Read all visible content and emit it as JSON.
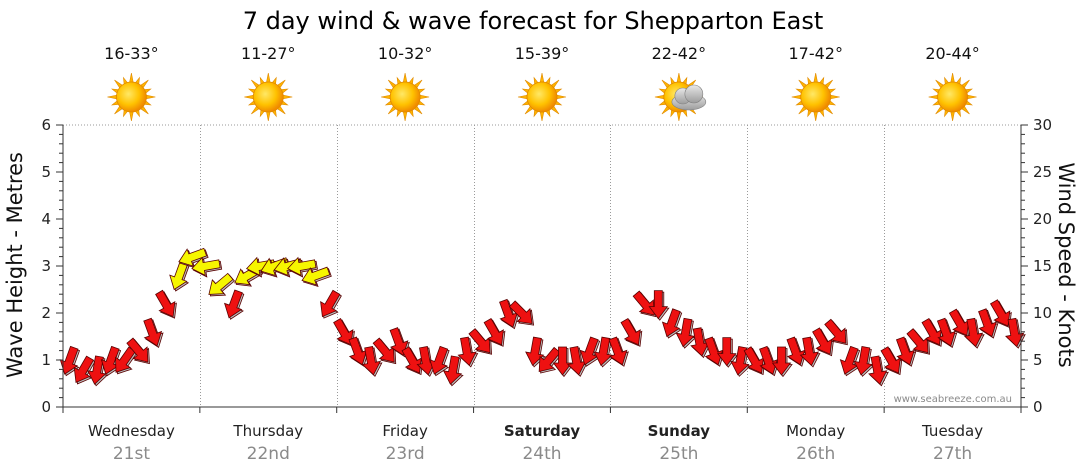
{
  "title": "7 day wind & wave forecast for Shepparton East",
  "chart_data": {
    "type": "line",
    "title": "7 day wind & wave forecast for Shepparton East",
    "y_left_label": "Wave Height - Metres",
    "y_right_label": "Wind Speed - Knots",
    "y_left_ticks": [
      "0",
      "1",
      "2",
      "3",
      "4",
      "5",
      "6"
    ],
    "y_right_ticks": [
      "0",
      "5",
      "10",
      "15",
      "20",
      "25",
      "30"
    ],
    "y_left_range": [
      0,
      6
    ],
    "y_right_range": [
      0,
      30
    ],
    "days": [
      {
        "day": "Wednesday",
        "date": "21st",
        "temp": "16-33°",
        "icon": "sun-icon",
        "bold": false
      },
      {
        "day": "Thursday",
        "date": "22nd",
        "temp": "11-27°",
        "icon": "sun-icon",
        "bold": false
      },
      {
        "day": "Friday",
        "date": "23rd",
        "temp": "10-32°",
        "icon": "sun-icon",
        "bold": false
      },
      {
        "day": "Saturday",
        "date": "24th",
        "temp": "15-39°",
        "icon": "sun-icon",
        "bold": true
      },
      {
        "day": "Sunday",
        "date": "25th",
        "temp": "22-42°",
        "icon": "sun-cloud-icon",
        "bold": true
      },
      {
        "day": "Monday",
        "date": "26th",
        "temp": "17-42°",
        "icon": "sun-icon",
        "bold": false
      },
      {
        "day": "Tuesday",
        "date": "27th",
        "temp": "20-44°",
        "icon": "sun-icon",
        "bold": false
      }
    ],
    "wind_series": {
      "name": "Wind",
      "units": "knots",
      "x_days": [
        0.0,
        0.1,
        0.2,
        0.3,
        0.4,
        0.5,
        0.6,
        0.7,
        0.8,
        0.9,
        1.0,
        1.1,
        1.2,
        1.3,
        1.4,
        1.5,
        1.6,
        1.7,
        1.8,
        1.9,
        2.0,
        2.1,
        2.2,
        2.3,
        2.4,
        2.5,
        2.6,
        2.7,
        2.8,
        2.9,
        3.0,
        3.1,
        3.2,
        3.3,
        3.4,
        3.5,
        3.6,
        3.7,
        3.8,
        3.9,
        4.0,
        4.1,
        4.2,
        4.3,
        4.4,
        4.5,
        4.6,
        4.7,
        4.8,
        4.9,
        5.0,
        5.1,
        5.2,
        5.3,
        5.4,
        5.5,
        5.6,
        5.7,
        5.8,
        5.9,
        6.0,
        6.1,
        6.2,
        6.3,
        6.4,
        6.5,
        6.6,
        6.7,
        6.8,
        6.9
      ],
      "speed_knots": [
        5,
        4,
        4,
        5,
        5,
        6,
        8,
        11,
        14,
        16,
        15,
        13,
        11,
        14,
        15,
        15,
        15,
        15,
        14,
        11,
        8,
        6,
        5,
        6,
        7,
        5,
        5,
        5,
        4,
        6,
        7,
        8,
        10,
        10,
        6,
        5,
        5,
        5,
        6,
        6,
        6,
        8,
        11,
        11,
        9,
        8,
        7,
        6,
        6,
        5,
        5,
        5,
        5,
        6,
        6,
        7,
        8,
        5,
        5,
        4,
        5,
        6,
        7,
        8,
        8,
        9,
        8,
        9,
        10,
        8
      ],
      "colour_low": "#ee1111",
      "colour_high": "#f6f600",
      "high_threshold_knots": 12
    },
    "grid": true
  },
  "colors": {
    "grid": "#9a9a9a",
    "axis": "#333333"
  },
  "watermark": "www.seabreeze.com.au"
}
